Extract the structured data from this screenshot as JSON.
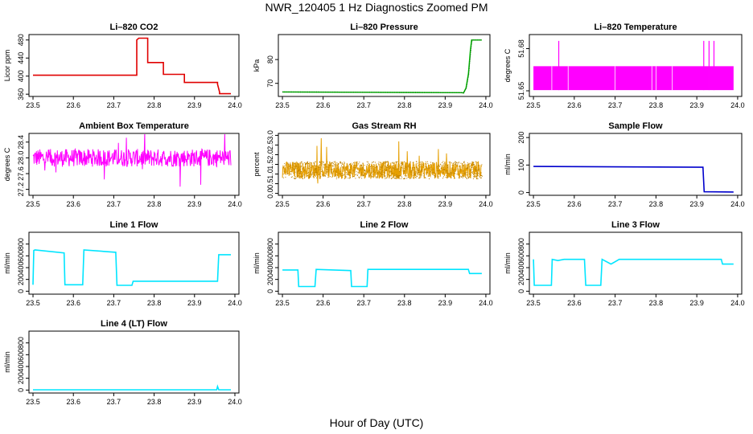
{
  "figure": {
    "title": "NWR_120405  1 Hz Diagnostics Zoomed PM",
    "xlabel": "Hour of Day (UTC)"
  },
  "chart_data": [
    {
      "id": "co2",
      "type": "line",
      "title": "Li–820 CO2",
      "ylabel": "Licor ppm",
      "color": "#e00000",
      "xlim": [
        23.49,
        24.01
      ],
      "ylim": [
        355,
        492
      ],
      "xticks": [
        "23.5",
        "23.6",
        "23.7",
        "23.8",
        "23.9",
        "24.0"
      ],
      "yticks": [
        360,
        400,
        440,
        480
      ],
      "ytick_labels": [
        "360",
        "400",
        "440",
        "480"
      ],
      "series": [
        {
          "x": [
            23.5,
            23.757,
            23.757,
            23.762,
            23.762,
            23.784,
            23.784,
            23.801,
            23.801,
            23.823,
            23.823,
            23.875,
            23.875,
            23.957,
            23.957,
            23.962,
            23.962,
            23.99
          ],
          "values": [
            402,
            402,
            480,
            484,
            484,
            484,
            430,
            430,
            430,
            430,
            404,
            404,
            386,
            386,
            382,
            365,
            361,
            361
          ]
        }
      ]
    },
    {
      "id": "pressure",
      "type": "line",
      "title": "Li–820 Pressure",
      "ylabel": "kPa",
      "color": "#00c000",
      "xlim": [
        23.49,
        24.01
      ],
      "ylim": [
        64.5,
        90.5
      ],
      "xticks": [
        "23.5",
        "23.6",
        "23.7",
        "23.8",
        "23.9",
        "24.0"
      ],
      "yticks": [
        70,
        80
      ],
      "ytick_labels": [
        "70",
        "80"
      ],
      "series": [
        {
          "x": [
            23.5,
            23.94,
            23.945,
            23.951,
            23.957,
            23.962,
            23.965,
            23.99
          ],
          "values": [
            66.4,
            66.1,
            66.0,
            68,
            74,
            84,
            88.2,
            88.2
          ]
        }
      ]
    },
    {
      "id": "licor-temp",
      "type": "line",
      "title": "Li–820 Temperature",
      "ylabel": "degrees C",
      "color": "#ff00ff",
      "xlim": [
        23.49,
        24.01
      ],
      "ylim": [
        51.646,
        51.69
      ],
      "xticks": [
        "23.5",
        "23.6",
        "23.7",
        "23.8",
        "23.9",
        "24.0"
      ],
      "yticks": [
        51.65,
        51.68
      ],
      "ytick_labels": [
        "51.65",
        "51.68"
      ],
      "series": [
        {
          "x": [
            23.5,
            23.99
          ],
          "values": [
            51.65,
            51.67
          ]
        }
      ]
    },
    {
      "id": "ambient-box",
      "type": "line",
      "title": "Ambient Box Temperature",
      "ylabel": "degrees C",
      "color": "#ff00ff",
      "xlim": [
        23.49,
        24.01
      ],
      "ylim": [
        27.05,
        28.62
      ],
      "xticks": [
        "23.5",
        "23.6",
        "23.7",
        "23.8",
        "23.9",
        "24.0"
      ],
      "yticks": [
        27.2,
        27.6,
        28.0,
        28.4
      ],
      "ytick_labels": [
        "27.2",
        "27.6",
        "28.0",
        "28.4"
      ],
      "series": [
        {
          "x": [
            23.5,
            23.99
          ],
          "values": [
            28.0,
            28.0
          ]
        }
      ]
    },
    {
      "id": "gas-rh",
      "type": "line",
      "title": "Gas Stream RH",
      "ylabel": "percent",
      "color": "#e69f00",
      "xlim": [
        23.49,
        24.01
      ],
      "ylim": [
        -0.1,
        3.1
      ],
      "xticks": [
        "23.5",
        "23.6",
        "23.7",
        "23.8",
        "23.9",
        "24.0"
      ],
      "yticks": [
        0.0,
        0.5,
        1.0,
        1.5,
        2.0,
        2.5,
        3.0
      ],
      "ytick_labels": [
        "0.0",
        "0.5",
        "1.0",
        "1.5",
        "2.0",
        "2.5",
        "3.0"
      ],
      "series": [
        {
          "x": [
            23.5,
            23.99
          ],
          "values": [
            1.2,
            1.2
          ]
        }
      ]
    },
    {
      "id": "sample-flow",
      "type": "line",
      "title": "Sample Flow",
      "ylabel": "ml/min",
      "color": "#0000cc",
      "xlim": [
        23.49,
        24.01
      ],
      "ylim": [
        -10,
        215
      ],
      "xticks": [
        "23.5",
        "23.6",
        "23.7",
        "23.8",
        "23.9",
        "24.0"
      ],
      "yticks": [
        0,
        100,
        200
      ],
      "ytick_labels": [
        "0",
        "100",
        "200"
      ],
      "series": [
        {
          "x": [
            23.5,
            23.915,
            23.918,
            23.99
          ],
          "values": [
            95,
            92,
            3,
            2
          ]
        }
      ]
    },
    {
      "id": "line1",
      "type": "line",
      "title": "Line 1 Flow",
      "ylabel": "ml/min",
      "color": "#00e5ff",
      "xlim": [
        23.49,
        24.01
      ],
      "ylim": [
        -50,
        1000
      ],
      "xticks": [
        "23.5",
        "23.6",
        "23.7",
        "23.8",
        "23.9",
        "24.0"
      ],
      "yticks": [
        0,
        200,
        400,
        600,
        800
      ],
      "ytick_labels": [
        "0",
        "200",
        "400",
        "600",
        "800"
      ],
      "series": [
        {
          "x": [
            23.5,
            23.502,
            23.505,
            23.577,
            23.579,
            23.623,
            23.626,
            23.705,
            23.708,
            23.745,
            23.748,
            23.957,
            23.96,
            23.99
          ],
          "values": [
            110,
            690,
            700,
            650,
            110,
            110,
            700,
            660,
            100,
            100,
            170,
            170,
            620,
            620
          ]
        }
      ]
    },
    {
      "id": "line2",
      "type": "line",
      "title": "Line 2 Flow",
      "ylabel": "ml/min",
      "color": "#00e5ff",
      "xlim": [
        23.49,
        24.01
      ],
      "ylim": [
        -50,
        1000
      ],
      "xticks": [
        "23.5",
        "23.6",
        "23.7",
        "23.8",
        "23.9",
        "24.0"
      ],
      "yticks": [
        0,
        200,
        400,
        600,
        800
      ],
      "ytick_labels": [
        "0",
        "200",
        "400",
        "600",
        "800"
      ],
      "series": [
        {
          "x": [
            23.5,
            23.538,
            23.54,
            23.58,
            23.583,
            23.668,
            23.67,
            23.708,
            23.71,
            23.957,
            23.96,
            23.99
          ],
          "values": [
            360,
            360,
            80,
            80,
            370,
            350,
            80,
            80,
            370,
            370,
            300,
            300
          ]
        }
      ]
    },
    {
      "id": "line3",
      "type": "line",
      "title": "Line 3 Flow",
      "ylabel": "ml/min",
      "color": "#00e5ff",
      "xlim": [
        23.49,
        24.01
      ],
      "ylim": [
        -50,
        1000
      ],
      "xticks": [
        "23.5",
        "23.6",
        "23.7",
        "23.8",
        "23.9",
        "24.0"
      ],
      "yticks": [
        0,
        200,
        400,
        600,
        800
      ],
      "ytick_labels": [
        "0",
        "200",
        "400",
        "600",
        "800"
      ],
      "series": [
        {
          "x": [
            23.5,
            23.502,
            23.544,
            23.546,
            23.56,
            23.575,
            23.625,
            23.628,
            23.665,
            23.668,
            23.69,
            23.71,
            23.96,
            23.963,
            23.99
          ],
          "values": [
            540,
            100,
            100,
            540,
            520,
            540,
            540,
            100,
            100,
            540,
            460,
            540,
            540,
            460,
            460
          ]
        }
      ]
    },
    {
      "id": "line4",
      "type": "line",
      "title": "Line 4 (LT) Flow",
      "ylabel": "ml/min",
      "color": "#00e5ff",
      "xlim": [
        23.49,
        24.01
      ],
      "ylim": [
        -50,
        1000
      ],
      "xticks": [
        "23.5",
        "23.6",
        "23.7",
        "23.8",
        "23.9",
        "24.0"
      ],
      "yticks": [
        0,
        200,
        400,
        600,
        800
      ],
      "ytick_labels": [
        "0",
        "200",
        "400",
        "600",
        "800"
      ],
      "series": [
        {
          "x": [
            23.5,
            23.955,
            23.957,
            23.96,
            23.99
          ],
          "values": [
            5,
            5,
            60,
            5,
            5
          ]
        }
      ]
    }
  ]
}
